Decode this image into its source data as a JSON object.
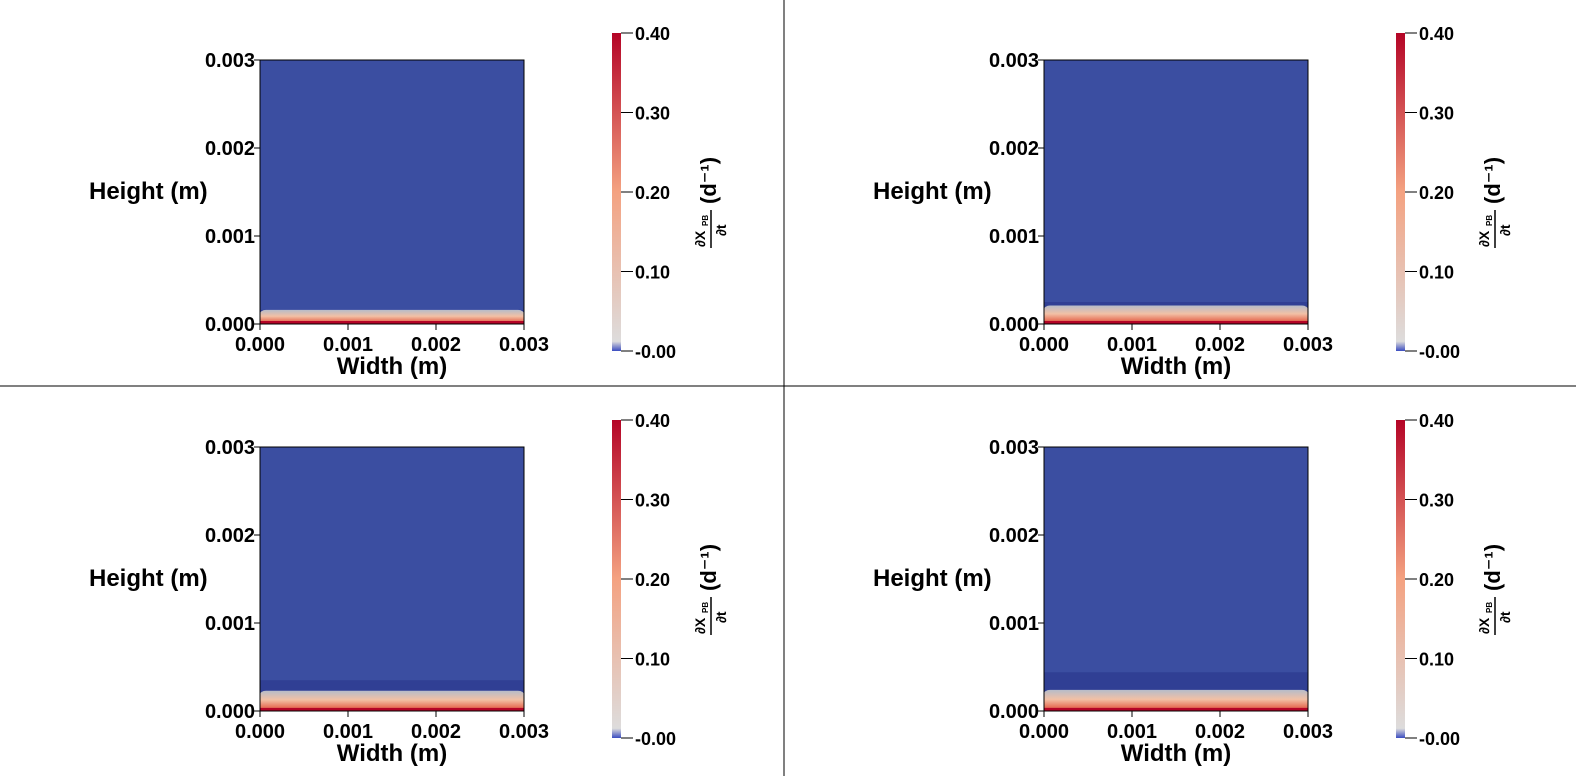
{
  "chart_data": {
    "type": "heatmap",
    "layout": "2x2",
    "panels": [
      {
        "name": "panel-1",
        "xlabel": "Width (m)",
        "ylabel": "Height (m)",
        "xlim": [
          0.0,
          0.003
        ],
        "ylim": [
          0.0,
          0.003
        ],
        "xticks": [
          "0.000",
          "0.001",
          "0.002",
          "0.003"
        ],
        "yticks": [
          "0.000",
          "0.001",
          "0.002",
          "0.003"
        ],
        "field": {
          "background_value": -0.0,
          "biofilm_top_m": 0.00016,
          "depleted_layer_top_m": 0.00016,
          "bottom_value": 0.4
        },
        "colorbar": {
          "label": "∂X_PB/∂t (d⁻¹)",
          "label_frac_top": "∂X",
          "label_frac_sub": "PB",
          "label_frac_bottom": "∂t",
          "label_unit": "(d⁻¹)",
          "range": [
            0.0,
            0.4
          ],
          "ticks": [
            "0.40",
            "0.30",
            "0.20",
            "0.10",
            "-0.00"
          ],
          "colors": [
            "#3b4cc0",
            "#dddcdc",
            "#f4a281",
            "#b40426"
          ]
        }
      },
      {
        "name": "panel-2",
        "xlabel": "Width (m)",
        "ylabel": "Height (m)",
        "xlim": [
          0.0,
          0.003
        ],
        "ylim": [
          0.0,
          0.003
        ],
        "xticks": [
          "0.000",
          "0.001",
          "0.002",
          "0.003"
        ],
        "yticks": [
          "0.000",
          "0.001",
          "0.002",
          "0.003"
        ],
        "field": {
          "background_value": -0.0,
          "biofilm_top_m": 0.00021,
          "depleted_layer_top_m": 0.00025,
          "bottom_value": 0.4
        },
        "colorbar": {
          "label": "∂X_PB/∂t (d⁻¹)",
          "label_frac_top": "∂X",
          "label_frac_sub": "PB",
          "label_frac_bottom": "∂t",
          "label_unit": "(d⁻¹)",
          "range": [
            0.0,
            0.4
          ],
          "ticks": [
            "0.40",
            "0.30",
            "0.20",
            "0.10",
            "-0.00"
          ],
          "colors": [
            "#3b4cc0",
            "#dddcdc",
            "#f4a281",
            "#b40426"
          ]
        }
      },
      {
        "name": "panel-3",
        "xlabel": "Width (m)",
        "ylabel": "Height (m)",
        "xlim": [
          0.0,
          0.003
        ],
        "ylim": [
          0.0,
          0.003
        ],
        "xticks": [
          "0.000",
          "0.001",
          "0.002",
          "0.003"
        ],
        "yticks": [
          "0.000",
          "0.001",
          "0.002",
          "0.003"
        ],
        "field": {
          "background_value": -0.0,
          "biofilm_top_m": 0.00023,
          "depleted_layer_top_m": 0.00035,
          "bottom_value": 0.4
        },
        "colorbar": {
          "label": "∂X_PB/∂t (d⁻¹)",
          "label_frac_top": "∂X",
          "label_frac_sub": "PB",
          "label_frac_bottom": "∂t",
          "label_unit": "(d⁻¹)",
          "range": [
            0.0,
            0.4
          ],
          "ticks": [
            "0.40",
            "0.30",
            "0.20",
            "0.10",
            "-0.00"
          ],
          "colors": [
            "#3b4cc0",
            "#dddcdc",
            "#f4a281",
            "#b40426"
          ]
        }
      },
      {
        "name": "panel-4",
        "xlabel": "Width (m)",
        "ylabel": "Height (m)",
        "xlim": [
          0.0,
          0.003
        ],
        "ylim": [
          0.0,
          0.003
        ],
        "xticks": [
          "0.000",
          "0.001",
          "0.002",
          "0.003"
        ],
        "yticks": [
          "0.000",
          "0.001",
          "0.002",
          "0.003"
        ],
        "field": {
          "background_value": -0.0,
          "biofilm_top_m": 0.00024,
          "depleted_layer_top_m": 0.00044,
          "bottom_value": 0.4
        },
        "colorbar": {
          "label": "∂X_PB/∂t (d⁻¹)",
          "label_frac_top": "∂X",
          "label_frac_sub": "PB",
          "label_frac_bottom": "∂t",
          "label_unit": "(d⁻¹)",
          "range": [
            0.0,
            0.4
          ],
          "ticks": [
            "0.40",
            "0.30",
            "0.20",
            "0.10",
            "-0.00"
          ],
          "colors": [
            "#3b4cc0",
            "#dddcdc",
            "#f4a281",
            "#b40426"
          ]
        }
      }
    ]
  },
  "colors": {
    "background": "#ffffff",
    "divider": "#000000",
    "field_background": "#3b4ea1",
    "depleted_layer": "#303f94",
    "text": "#000000"
  }
}
